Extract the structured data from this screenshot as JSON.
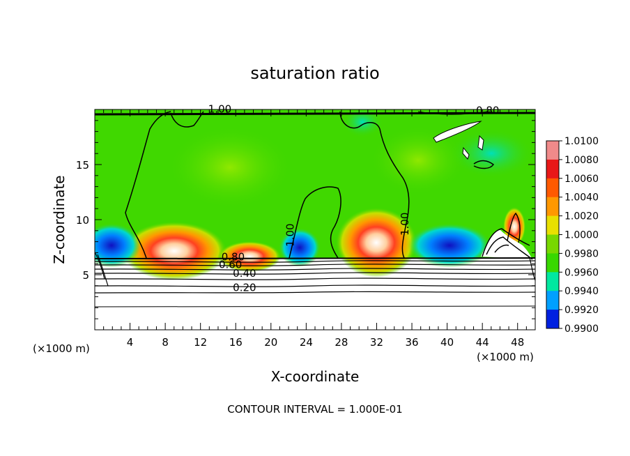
{
  "chart_data": {
    "type": "heatmap",
    "title": "saturation ratio",
    "xlabel": "X-coordinate",
    "ylabel": "Z-coordinate",
    "x_unit_left": "(×1000 m)",
    "x_unit_right": "(×1000 m)",
    "xlim": [
      0,
      50
    ],
    "ylim": [
      0,
      20
    ],
    "xticks": [
      4,
      8,
      12,
      16,
      20,
      24,
      28,
      32,
      36,
      40,
      44,
      48
    ],
    "yticks": [
      5,
      10,
      15
    ],
    "footer": "CONTOUR INTERVAL = 1.000E-01",
    "colorbar": {
      "min": 0.99,
      "max": 1.01,
      "labels": [
        "1.0100",
        "1.0080",
        "1.0060",
        "1.0040",
        "1.0020",
        "1.0000",
        "0.9980",
        "0.9960",
        "0.9940",
        "0.9920",
        "0.9900"
      ],
      "colors": [
        "#f08a8a",
        "#e81818",
        "#ff5a00",
        "#ff9800",
        "#e8e000",
        "#78d800",
        "#38d800",
        "#00e8a0",
        "#00a0ff",
        "#0020e0",
        "#5010a0"
      ]
    },
    "contour_labels": [
      {
        "text": "1.00",
        "x": 14.2,
        "z": 19.7
      },
      {
        "text": "1.00",
        "x": 22.6,
        "z": 8.6
      },
      {
        "text": "1.00",
        "x": 35.6,
        "z": 9.6
      },
      {
        "text": "0.80",
        "x": 44.6,
        "z": 19.6
      },
      {
        "text": "0.80",
        "x": 15.7,
        "z": 6.3
      },
      {
        "text": "0.60",
        "x": 15.4,
        "z": 5.6
      },
      {
        "text": "0.40",
        "x": 17.0,
        "z": 4.8
      },
      {
        "text": "0.20",
        "x": 17.0,
        "z": 3.5
      }
    ]
  }
}
